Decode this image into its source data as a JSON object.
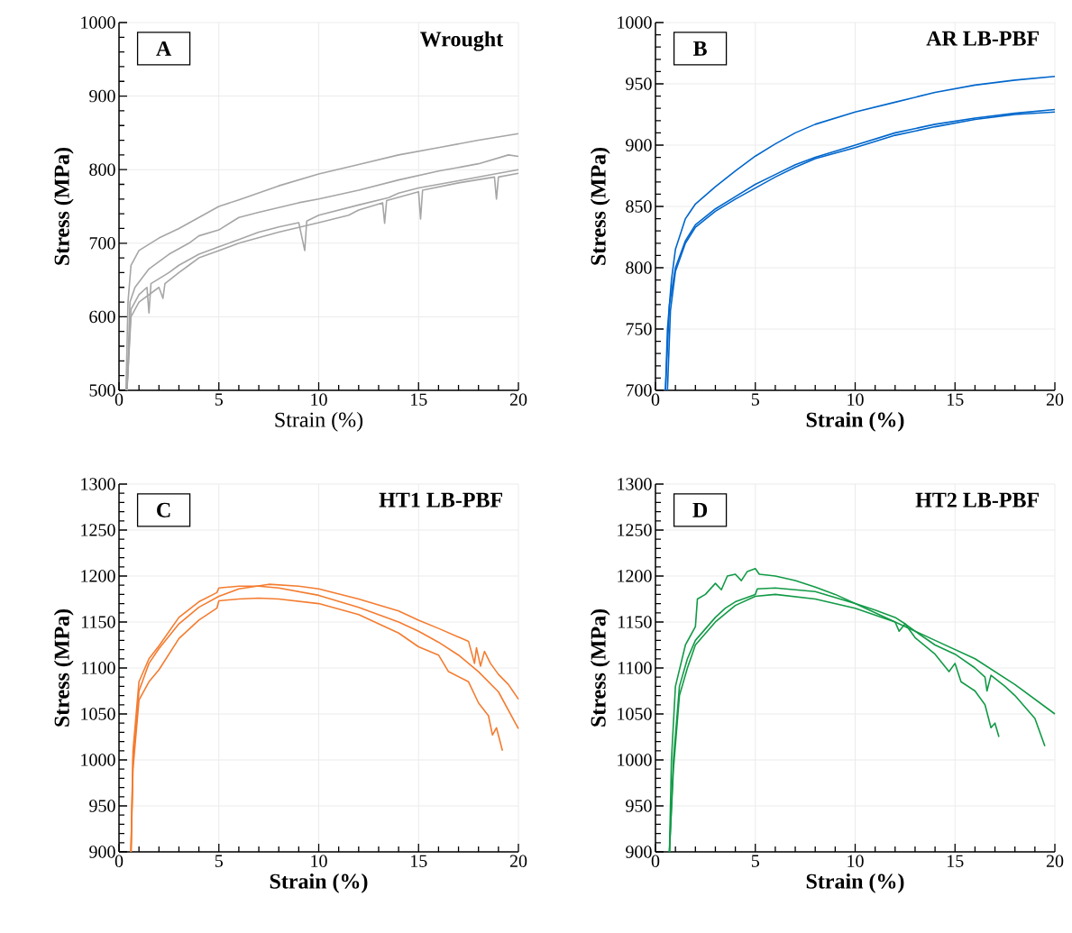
{
  "chart_data": [
    {
      "type": "line",
      "xlabel": "Strain (%)",
      "ylabel": "Stress (MPa)",
      "annotations": [
        "A",
        "Wrought"
      ],
      "xlim": [
        0,
        20
      ],
      "ylim": [
        500,
        1000
      ],
      "xticks": [
        0,
        5,
        10,
        15,
        20
      ],
      "yticks": [
        500,
        600,
        700,
        800,
        900,
        1000
      ],
      "grid": true,
      "series": [
        {
          "color": "#a6a6a6",
          "x": [
            0.35,
            0.45,
            0.6,
            1,
            2,
            3,
            4,
            5,
            6,
            8,
            10,
            12,
            14,
            16,
            18,
            20
          ],
          "values": [
            500,
            620,
            670,
            690,
            707,
            720,
            735,
            750,
            759,
            778,
            794,
            807,
            820,
            830,
            840,
            849
          ]
        },
        {
          "color": "#a6a6a6",
          "x": [
            0.4,
            0.55,
            0.8,
            1.5,
            2.5,
            3.5,
            4,
            5,
            6,
            7,
            9,
            10,
            12,
            14,
            16,
            18,
            19.5,
            20
          ],
          "values": [
            500,
            620,
            640,
            665,
            685,
            700,
            710,
            718,
            735,
            742,
            755,
            760,
            772,
            786,
            798,
            808,
            820,
            818
          ]
        },
        {
          "color": "#a6a6a6",
          "x": [
            0.4,
            0.6,
            1,
            1.4,
            1.5,
            1.6,
            2.5,
            3,
            4,
            5,
            6,
            7,
            8,
            9,
            9.3,
            9.4,
            10,
            12,
            13.5,
            14,
            15,
            17,
            19,
            20
          ],
          "values": [
            500,
            610,
            630,
            640,
            605,
            645,
            660,
            670,
            685,
            695,
            705,
            715,
            722,
            728,
            690,
            730,
            738,
            752,
            762,
            768,
            775,
            785,
            795,
            800
          ]
        },
        {
          "color": "#a6a6a6",
          "x": [
            0.4,
            0.6,
            1,
            2,
            2.2,
            2.3,
            3,
            3.5,
            4,
            5,
            6,
            8,
            10,
            11.5,
            12,
            13.2,
            13.3,
            13.4,
            15,
            15.1,
            15.2,
            17,
            18.8,
            18.9,
            19,
            20
          ],
          "values": [
            500,
            600,
            620,
            640,
            625,
            645,
            660,
            670,
            680,
            690,
            700,
            715,
            728,
            738,
            745,
            755,
            727,
            758,
            770,
            733,
            772,
            782,
            790,
            760,
            790,
            795
          ]
        }
      ]
    },
    {
      "type": "line",
      "xlabel": "Strain (%)",
      "ylabel": "Stress (MPa)",
      "annotations": [
        "B",
        "AR LB-PBF"
      ],
      "xlim": [
        0,
        20
      ],
      "ylim": [
        700,
        1000
      ],
      "xticks": [
        0,
        5,
        10,
        15,
        20
      ],
      "yticks": [
        700,
        750,
        800,
        850,
        900,
        950,
        1000
      ],
      "grid": true,
      "series": [
        {
          "color": "#0066cc",
          "x": [
            0.5,
            0.6,
            0.8,
            1,
            1.5,
            2,
            3,
            4,
            5,
            6,
            7,
            8,
            10,
            12,
            14,
            16,
            18,
            20
          ],
          "values": [
            700,
            750,
            790,
            815,
            840,
            852,
            866,
            879,
            891,
            901,
            910,
            917,
            927,
            935,
            943,
            949,
            953,
            956
          ]
        },
        {
          "color": "#0066cc",
          "x": [
            0.5,
            0.7,
            1,
            1.5,
            2,
            3,
            4,
            5,
            6,
            7,
            8,
            10,
            12,
            14,
            16,
            18,
            20
          ],
          "values": [
            700,
            770,
            800,
            822,
            835,
            848,
            858,
            868,
            876,
            884,
            890,
            900,
            910,
            917,
            922,
            926,
            929
          ]
        },
        {
          "color": "#0066cc",
          "x": [
            0.6,
            0.75,
            1,
            1.5,
            2,
            3,
            4,
            5,
            6,
            7,
            8,
            10,
            12,
            14,
            16,
            18,
            20
          ],
          "values": [
            700,
            765,
            797,
            820,
            833,
            846,
            856,
            865,
            874,
            882,
            889,
            898,
            908,
            915,
            921,
            925,
            927
          ]
        }
      ]
    },
    {
      "type": "line",
      "xlabel": "Strain (%)",
      "ylabel": "Stress (MPa)",
      "annotations": [
        "C",
        "HT1 LB-PBF"
      ],
      "xlim": [
        0,
        20
      ],
      "ylim": [
        900,
        1300
      ],
      "xticks": [
        0,
        5,
        10,
        15,
        20
      ],
      "yticks": [
        900,
        950,
        1000,
        1050,
        1100,
        1150,
        1200,
        1250,
        1300
      ],
      "grid": true,
      "series": [
        {
          "color": "#f47c30",
          "x": [
            0.6,
            0.7,
            1,
            1.5,
            2,
            3,
            4,
            5,
            6,
            7.5,
            9,
            10,
            12,
            14,
            15,
            16,
            17.5,
            17.8,
            17.9,
            18.1,
            18.3,
            18.6,
            19,
            19.5,
            20
          ],
          "values": [
            900,
            1000,
            1075,
            1105,
            1121,
            1148,
            1166,
            1178,
            1186,
            1191,
            1189,
            1186,
            1175,
            1162,
            1152,
            1143,
            1129,
            1105,
            1122,
            1102,
            1118,
            1105,
            1093,
            1082,
            1066
          ]
        },
        {
          "color": "#f47c30",
          "x": [
            0.6,
            0.7,
            1,
            1.5,
            2,
            3,
            4,
            4.9,
            5,
            6,
            7,
            8,
            10,
            12,
            14,
            15,
            16,
            17,
            18,
            19,
            20
          ],
          "values": [
            900,
            1010,
            1085,
            1110,
            1124,
            1155,
            1172,
            1182,
            1187,
            1189,
            1189,
            1187,
            1179,
            1166,
            1150,
            1140,
            1128,
            1114,
            1096,
            1074,
            1034
          ]
        },
        {
          "color": "#f47c30",
          "x": [
            0.6,
            0.7,
            1,
            1.5,
            2,
            3,
            4,
            4.9,
            5,
            6,
            7,
            8,
            10,
            12,
            14,
            15,
            16,
            16.5,
            17.5,
            18,
            18.5,
            18.7,
            18.9,
            19.2
          ],
          "values": [
            900,
            990,
            1065,
            1085,
            1098,
            1132,
            1152,
            1165,
            1173,
            1175,
            1176,
            1175,
            1170,
            1158,
            1138,
            1123,
            1114,
            1096,
            1085,
            1062,
            1048,
            1027,
            1035,
            1010
          ]
        }
      ]
    },
    {
      "type": "line",
      "xlabel": "Strain (%)",
      "ylabel": "Stress (MPa)",
      "annotations": [
        "D",
        "HT2 LB-PBF"
      ],
      "xlim": [
        0,
        20
      ],
      "ylim": [
        900,
        1300
      ],
      "xticks": [
        0,
        5,
        10,
        15,
        20
      ],
      "yticks": [
        900,
        950,
        1000,
        1050,
        1100,
        1150,
        1200,
        1250,
        1300
      ],
      "grid": true,
      "series": [
        {
          "color": "#119a46",
          "x": [
            0.7,
            0.8,
            1,
            1.5,
            2,
            2.1,
            2.5,
            3,
            3.3,
            3.6,
            4,
            4.3,
            4.6,
            5,
            5.2,
            6,
            7,
            8,
            9,
            10,
            11,
            12,
            12.2,
            12.5,
            13,
            14,
            14.7,
            15,
            15.3,
            16,
            16.5,
            16.8,
            17,
            17.2
          ],
          "values": [
            900,
            1000,
            1080,
            1125,
            1145,
            1175,
            1180,
            1192,
            1185,
            1200,
            1202,
            1195,
            1205,
            1208,
            1202,
            1200,
            1195,
            1188,
            1180,
            1170,
            1160,
            1150,
            1140,
            1148,
            1133,
            1115,
            1096,
            1105,
            1085,
            1075,
            1060,
            1035,
            1040,
            1025
          ]
        },
        {
          "color": "#119a46",
          "x": [
            0.7,
            0.9,
            1.2,
            1.6,
            2,
            3,
            3.5,
            4,
            5,
            5.1,
            6,
            8,
            10,
            11,
            12,
            12.5,
            13,
            14,
            15,
            16,
            16.5,
            16.6,
            16.8,
            17.5,
            18,
            19,
            19.5
          ],
          "values": [
            900,
            1000,
            1080,
            1110,
            1130,
            1155,
            1165,
            1172,
            1180,
            1186,
            1187,
            1183,
            1170,
            1163,
            1155,
            1148,
            1140,
            1125,
            1115,
            1100,
            1090,
            1075,
            1092,
            1080,
            1070,
            1045,
            1015
          ]
        },
        {
          "color": "#119a46",
          "x": [
            0.7,
            0.9,
            1.2,
            1.6,
            2,
            3,
            4,
            5,
            6,
            8,
            10,
            12,
            14,
            16,
            18,
            20
          ],
          "values": [
            900,
            990,
            1070,
            1100,
            1125,
            1150,
            1168,
            1178,
            1180,
            1175,
            1165,
            1150,
            1130,
            1110,
            1082,
            1050
          ]
        }
      ]
    }
  ]
}
